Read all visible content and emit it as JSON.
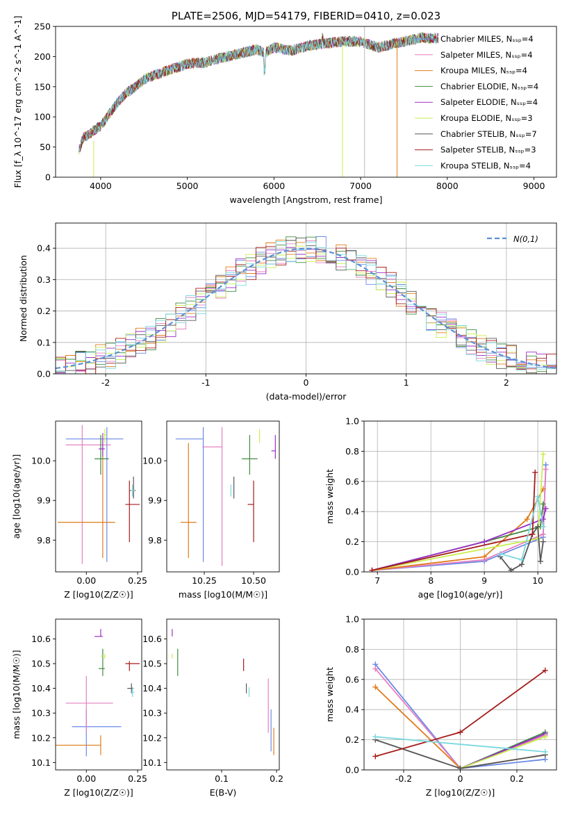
{
  "chart_data": [
    {
      "type": "line",
      "title": "PLATE=2506, MJD=54179, FIBERID=0410, z=0.023",
      "xlabel": "wavelength [Angstrom, rest frame]",
      "ylabel": "Flux [f_λ 10^-17 erg cm^-2 s^-1 A^-1]",
      "xlim": [
        3480,
        9260
      ],
      "ylim": [
        0,
        250
      ],
      "xticks": [
        4000,
        5000,
        6000,
        7000,
        8000,
        9000
      ],
      "yticks": [
        0,
        50,
        100,
        150,
        200,
        250
      ],
      "grid": false,
      "legend_position": "right",
      "continuum": {
        "x": [
          3750,
          3800,
          3900,
          4000,
          4100,
          4200,
          4300,
          4400,
          4500,
          4600,
          4800,
          5000,
          5200,
          5400,
          5600,
          5800,
          5900,
          6000,
          6200,
          6400,
          6600,
          6800,
          7000,
          7200,
          7400,
          7600,
          7700,
          7800,
          7900
        ],
        "y": [
          45,
          65,
          75,
          85,
          105,
          125,
          140,
          150,
          162,
          168,
          178,
          188,
          190,
          198,
          205,
          212,
          206,
          215,
          210,
          218,
          222,
          225,
          225,
          215,
          222,
          228,
          232,
          230,
          230
        ]
      },
      "series": [
        {
          "name": "Chabrier MILES, N_SSP=4"
        },
        {
          "name": "Salpeter MILES, N_SSP=4"
        },
        {
          "name": "Kroupa MILES, N_SSP=4"
        },
        {
          "name": "Chabrier ELODIE, N_SSP=4"
        },
        {
          "name": "Salpeter ELODIE, N_SSP=4"
        },
        {
          "name": "Kroupa ELODIE, N_SSP=3"
        },
        {
          "name": "Chabrier STELIB, N_SSP=7"
        },
        {
          "name": "Salpeter STELIB, N_SSP=3"
        },
        {
          "name": "Kroupa STELIB, N_SSP=4"
        }
      ]
    },
    {
      "type": "line",
      "xlabel": "(data-model)/error",
      "ylabel": "Normed distribution",
      "xlim": [
        -2.5,
        2.5
      ],
      "ylim": [
        0,
        0.48
      ],
      "xticks": [
        -2,
        -1,
        0,
        1,
        2
      ],
      "yticks": [
        0.0,
        0.1,
        0.2,
        0.3,
        0.4
      ],
      "grid": true,
      "legend_position": "top-right",
      "legend": "N(0,1)",
      "bin_width": 0.1
    },
    {
      "type": "scatter",
      "xlabel": "Z [log10(Z/Z☉)]",
      "ylabel": "age [log10(age/yr)]",
      "xlim": [
        -0.15,
        0.27
      ],
      "ylim": [
        9.72,
        10.1
      ],
      "xticks": [
        0.0,
        0.25
      ],
      "yticks": [
        9.8,
        9.9,
        10.0
      ],
      "points": [
        {
          "x": 0.1,
          "y": 10.055,
          "xerr": [
            0.2,
            0.08
          ],
          "yerr": [
            0.31,
            0.03
          ]
        },
        {
          "x": -0.02,
          "y": 10.04,
          "xerr": [
            0.08,
            0.14
          ],
          "yerr": [
            0.3,
            0.05
          ]
        },
        {
          "x": 0.08,
          "y": 9.845,
          "xerr": [
            0.22,
            0.06
          ],
          "yerr": [
            0.09,
            0.21
          ]
        },
        {
          "x": 0.07,
          "y": 10.005,
          "xerr": [
            0.03,
            0.04
          ],
          "yerr": [
            0.04,
            0.06
          ]
        },
        {
          "x": 0.08,
          "y": 10.03,
          "xerr": [
            0.02,
            0.01
          ],
          "yerr": [
            0.02,
            0.04
          ]
        },
        {
          "x": 0.09,
          "y": 10.065,
          "xerr": [
            0.01,
            0.01
          ],
          "yerr": [
            0.02,
            0.015
          ]
        },
        {
          "x": 0.23,
          "y": 9.925,
          "xerr": [
            0.02,
            0.01
          ],
          "yerr": [
            0.02,
            0.035
          ]
        },
        {
          "x": 0.21,
          "y": 9.89,
          "xerr": [
            0.02,
            0.05
          ],
          "yerr": [
            0.095,
            0.06
          ]
        },
        {
          "x": 0.225,
          "y": 9.925,
          "xerr": [
            0.01,
            0.01
          ],
          "yerr": [
            0.015,
            0.015
          ]
        }
      ]
    },
    {
      "type": "scatter",
      "xlabel": "mass [log10(M/M☉)]",
      "xlim": [
        10.06,
        10.63
      ],
      "ylim": [
        9.72,
        10.1
      ],
      "xticks": [
        10.25,
        10.5
      ],
      "yticks": [
        9.8,
        9.9,
        10.0
      ],
      "points": [
        {
          "x": 10.245,
          "y": 10.055,
          "xerr": [
            0.14,
            0.0
          ],
          "yerr": [
            0.31,
            0.03
          ]
        },
        {
          "x": 10.34,
          "y": 10.035,
          "xerr": [
            0.1,
            0.0
          ],
          "yerr": [
            0.3,
            0.05
          ]
        },
        {
          "x": 10.17,
          "y": 9.845,
          "xerr": [
            0.04,
            0.04
          ],
          "yerr": [
            0.09,
            0.2
          ]
        },
        {
          "x": 10.48,
          "y": 10.005,
          "xerr": [
            0.04,
            0.04
          ],
          "yerr": [
            0.04,
            0.06
          ]
        },
        {
          "x": 10.61,
          "y": 10.025,
          "xerr": [
            0.02,
            0.0
          ],
          "yerr": [
            0.02,
            0.04
          ]
        },
        {
          "x": 10.53,
          "y": 10.065,
          "xerr": [
            0.0,
            0.0
          ],
          "yerr": [
            0.02,
            0.015
          ]
        },
        {
          "x": 10.4,
          "y": 9.925,
          "xerr": [
            0.0,
            0.0
          ],
          "yerr": [
            0.02,
            0.035
          ]
        },
        {
          "x": 10.5,
          "y": 9.89,
          "xerr": [
            0.03,
            0.0
          ],
          "yerr": [
            0.095,
            0.06
          ]
        },
        {
          "x": 10.385,
          "y": 9.925,
          "xerr": [
            0.0,
            0.0
          ],
          "yerr": [
            0.015,
            0.015
          ]
        }
      ]
    },
    {
      "type": "line",
      "xlabel": "age [log10(age/yr)]",
      "ylabel": "mass weight",
      "xlim": [
        6.75,
        10.35
      ],
      "ylim": [
        0,
        1
      ],
      "xticks": [
        7,
        8,
        9,
        10
      ],
      "yticks": [
        0.0,
        0.2,
        0.4,
        0.6,
        0.8,
        1.0
      ],
      "grid": true,
      "series": [
        {
          "x": [
            6.9,
            9.0,
            10.1,
            10.15
          ],
          "y": [
            0.01,
            0.07,
            0.23,
            0.71
          ]
        },
        {
          "x": [
            6.9,
            9.0,
            10.1,
            10.15
          ],
          "y": [
            0.01,
            0.08,
            0.25,
            0.68
          ]
        },
        {
          "x": [
            6.9,
            9.0,
            9.8,
            10.1
          ],
          "y": [
            0.01,
            0.1,
            0.35,
            0.55
          ]
        },
        {
          "x": [
            6.9,
            9.0,
            10.05,
            10.1
          ],
          "y": [
            0.01,
            0.2,
            0.3,
            0.45
          ]
        },
        {
          "x": [
            6.9,
            9.0,
            10.1,
            10.15
          ],
          "y": [
            0.01,
            0.2,
            0.35,
            0.42
          ]
        },
        {
          "x": [
            6.9,
            10.0,
            10.1
          ],
          "y": [
            0.01,
            0.22,
            0.78
          ]
        },
        {
          "x": [
            9.3,
            9.5,
            9.7,
            9.9,
            10.0,
            10.05,
            10.1
          ],
          "y": [
            0.1,
            0.01,
            0.05,
            0.25,
            0.3,
            0.07,
            0.2
          ]
        },
        {
          "x": [
            6.9,
            9.9,
            9.95
          ],
          "y": [
            0.01,
            0.25,
            0.66
          ]
        },
        {
          "x": [
            9.3,
            9.7,
            10.0,
            10.1
          ],
          "y": [
            0.12,
            0.08,
            0.5,
            0.3
          ]
        }
      ]
    },
    {
      "type": "scatter",
      "xlabel": "Z [log10(Z/Z☉)]",
      "ylabel": "mass [log10(M/M☉)]",
      "xlim": [
        -0.15,
        0.27
      ],
      "ylim": [
        10.07,
        10.68
      ],
      "xticks": [
        0.0,
        0.25
      ],
      "yticks": [
        10.1,
        10.2,
        10.3,
        10.4,
        10.5,
        10.6
      ],
      "points": [
        {
          "x": 0.0,
          "y": 10.245,
          "xerr": [
            0.07,
            0.17
          ],
          "yerr": [
            0.12,
            0.07
          ]
        },
        {
          "x": 0.0,
          "y": 10.34,
          "xerr": [
            0.1,
            0.13
          ],
          "yerr": [
            0.12,
            0.11
          ]
        },
        {
          "x": 0.07,
          "y": 10.17,
          "xerr": [
            0.23,
            0.0
          ],
          "yerr": [
            0.04,
            0.04
          ]
        },
        {
          "x": 0.08,
          "y": 10.48,
          "xerr": [
            0.02,
            0.01
          ],
          "yerr": [
            0.03,
            0.08
          ]
        },
        {
          "x": 0.07,
          "y": 10.61,
          "xerr": [
            0.03,
            0.01
          ],
          "yerr": [
            0.0,
            0.03
          ]
        },
        {
          "x": 0.09,
          "y": 10.53,
          "xerr": [
            0.02,
            0.0
          ],
          "yerr": [
            0.01,
            0.01
          ]
        },
        {
          "x": 0.22,
          "y": 10.4,
          "xerr": [
            0.02,
            0.01
          ],
          "yerr": [
            0.02,
            0.02
          ]
        },
        {
          "x": 0.21,
          "y": 10.5,
          "xerr": [
            0.02,
            0.05
          ],
          "yerr": [
            0.03,
            0.01
          ]
        },
        {
          "x": 0.225,
          "y": 10.385,
          "xerr": [
            0.01,
            0.01
          ],
          "yerr": [
            0.02,
            0.02
          ]
        }
      ]
    },
    {
      "type": "scatter",
      "xlabel": "E(B-V)",
      "xlim": [
        0.0,
        0.205
      ],
      "ylim": [
        10.07,
        10.68
      ],
      "xticks": [
        0.1,
        0.2
      ],
      "yticks": [
        10.1,
        10.2,
        10.3,
        10.4,
        10.5,
        10.6
      ],
      "points": [
        {
          "x": 0.19,
          "y": 10.245,
          "xerr": [
            0,
            0
          ],
          "yerr": [
            0.1,
            0.07
          ]
        },
        {
          "x": 0.185,
          "y": 10.34,
          "xerr": [
            0,
            0
          ],
          "yerr": [
            0.12,
            0.1
          ]
        },
        {
          "x": 0.195,
          "y": 10.17,
          "xerr": [
            0,
            0
          ],
          "yerr": [
            0.04,
            0.07
          ]
        },
        {
          "x": 0.02,
          "y": 10.48,
          "xerr": [
            0,
            0
          ],
          "yerr": [
            0.03,
            0.08
          ]
        },
        {
          "x": 0.01,
          "y": 10.61,
          "xerr": [
            0,
            0
          ],
          "yerr": [
            0.0,
            0.03
          ]
        },
        {
          "x": 0.01,
          "y": 10.53,
          "xerr": [
            0,
            0
          ],
          "yerr": [
            0.01,
            0.01
          ]
        },
        {
          "x": 0.145,
          "y": 10.4,
          "xerr": [
            0,
            0
          ],
          "yerr": [
            0.02,
            0.02
          ]
        },
        {
          "x": 0.14,
          "y": 10.5,
          "xerr": [
            0,
            0
          ],
          "yerr": [
            0.03,
            0.02
          ]
        },
        {
          "x": 0.15,
          "y": 10.385,
          "xerr": [
            0,
            0
          ],
          "yerr": [
            0.02,
            0.02
          ]
        }
      ]
    },
    {
      "type": "line",
      "xlabel": "Z [log10(Z/Z☉)]",
      "ylabel": "mass weight",
      "xlim": [
        -0.34,
        0.34
      ],
      "ylim": [
        0,
        1
      ],
      "xticks": [
        -0.2,
        0.0,
        0.2
      ],
      "yticks": [
        0.0,
        0.2,
        0.4,
        0.6,
        0.8,
        1.0
      ],
      "grid": true,
      "series": [
        {
          "x": [
            -0.3,
            0.0,
            0.3
          ],
          "y": [
            0.7,
            0.01,
            0.07
          ]
        },
        {
          "x": [
            -0.3,
            0.0,
            0.3
          ],
          "y": [
            0.67,
            0.01,
            0.23
          ]
        },
        {
          "x": [
            -0.3,
            0.0,
            0.3
          ],
          "y": [
            0.55,
            0.01,
            0.1
          ]
        },
        {
          "x": [
            0.0,
            0.3
          ],
          "y": [
            0.01,
            0.25
          ]
        },
        {
          "x": [
            0.0,
            0.3
          ],
          "y": [
            0.01,
            0.24
          ]
        },
        {
          "x": [
            0.0,
            0.3
          ],
          "y": [
            0.01,
            0.22
          ]
        },
        {
          "x": [
            -0.3,
            0.0,
            0.3
          ],
          "y": [
            0.2,
            0.01,
            0.1
          ]
        },
        {
          "x": [
            -0.3,
            0.0,
            0.3
          ],
          "y": [
            0.09,
            0.25,
            0.66
          ]
        },
        {
          "x": [
            -0.3,
            0.3
          ],
          "y": [
            0.22,
            0.12
          ]
        }
      ]
    }
  ],
  "colors": [
    "#6a89e6",
    "#e67fc1",
    "#e07b1a",
    "#3f8a3f",
    "#9a2ec4",
    "#c9ee4f",
    "#555555",
    "#a61b1b",
    "#7ad8de"
  ],
  "normal_color": "#5b8fd6"
}
